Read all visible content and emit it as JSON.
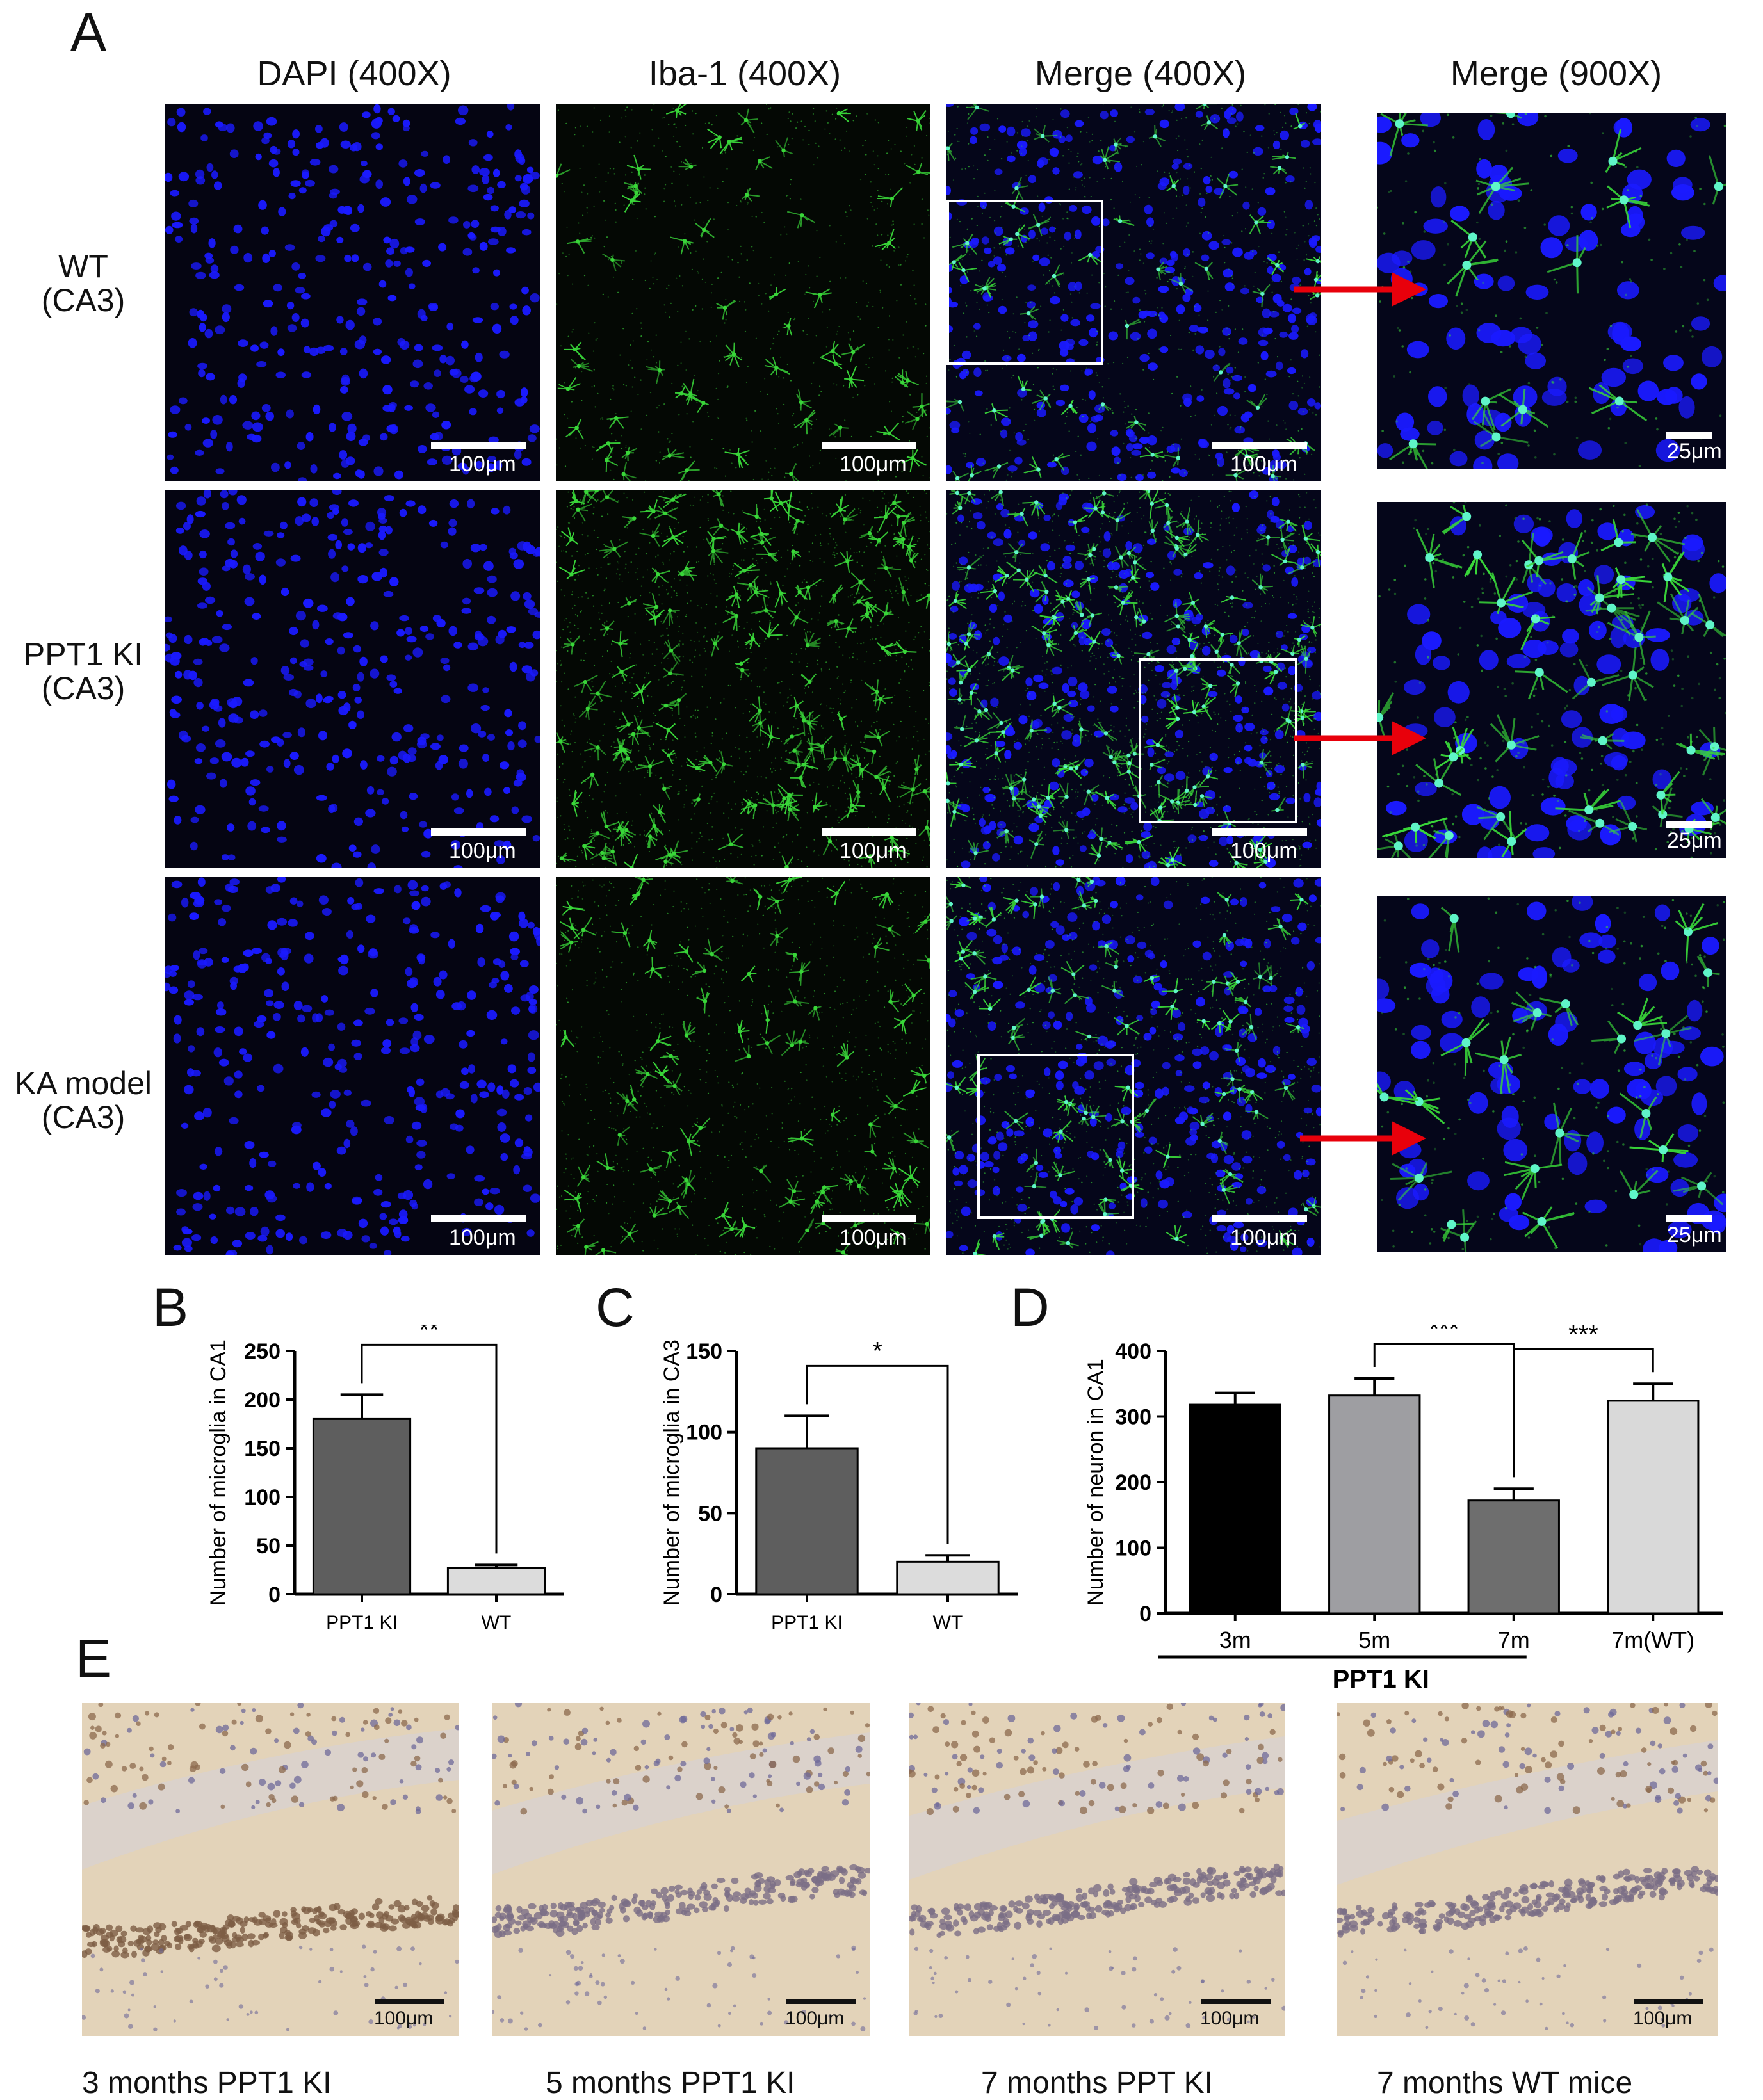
{
  "panels": {
    "A": "A",
    "B": "B",
    "C": "C",
    "D": "D",
    "E": "E"
  },
  "panel_a": {
    "columns": [
      "DAPI (400X)",
      "Iba-1 (400X)",
      "Merge (400X)",
      "Merge (900X)"
    ],
    "rows": [
      {
        "line1": "WT",
        "line2": "(CA3)"
      },
      {
        "line1": "PPT1 KI",
        "line2": "(CA3)"
      },
      {
        "line1": "KA model",
        "line2": "(CA3)"
      }
    ],
    "scale_400x": "100μm",
    "scale_900x": "25μm",
    "colors": {
      "nuclei": "#1a1aff",
      "microglia": "#39d639",
      "arrow": "#e8000b"
    }
  },
  "panel_e": {
    "scale": "100μm",
    "captions": [
      "3 months PPT1 KI",
      "5 months PPT1 KI",
      "7 months PPT KI",
      "7 months  WT mice"
    ]
  },
  "chart_data": [
    {
      "type": "bar",
      "panel": "B",
      "categories": [
        "PPT1 KI",
        "WT"
      ],
      "values": [
        180,
        27
      ],
      "errors": [
        25,
        3
      ],
      "ylabel": "Number of microglia in CA1",
      "ylim": [
        0,
        250
      ],
      "yticks": [
        0,
        50,
        100,
        150,
        200,
        250
      ],
      "colors": [
        "#5e5e5e",
        "#dcdcdc"
      ],
      "significance": [
        {
          "pair": [
            0,
            1
          ],
          "label": "**"
        }
      ]
    },
    {
      "type": "bar",
      "panel": "C",
      "categories": [
        "PPT1 KI",
        "WT"
      ],
      "values": [
        90,
        20
      ],
      "errors": [
        20,
        4
      ],
      "ylabel": "Number of microglia in CA3",
      "ylim": [
        0,
        150
      ],
      "yticks": [
        0,
        50,
        100,
        150
      ],
      "colors": [
        "#5e5e5e",
        "#dcdcdc"
      ],
      "significance": [
        {
          "pair": [
            0,
            1
          ],
          "label": "*"
        }
      ]
    },
    {
      "type": "bar",
      "panel": "D",
      "categories": [
        "3m",
        "5m",
        "7m",
        "7m(WT)"
      ],
      "values": [
        318,
        332,
        172,
        324
      ],
      "errors": [
        18,
        26,
        18,
        26
      ],
      "ylabel": "Number of neuron in CA1",
      "ylim": [
        0,
        400
      ],
      "yticks": [
        0,
        100,
        200,
        300,
        400
      ],
      "colors": [
        "#000000",
        "#9e9ea2",
        "#6e6e6e",
        "#d9d9d9"
      ],
      "group_label": "PPT1 KI",
      "significance": [
        {
          "pair": [
            1,
            2
          ],
          "label": "***"
        },
        {
          "pair": [
            2,
            3
          ],
          "label": "***"
        }
      ]
    }
  ]
}
